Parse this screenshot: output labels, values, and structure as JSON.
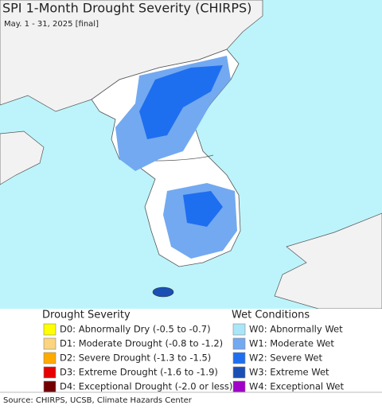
{
  "title": "SPI 1-Month Drought Severity (CHIRPS)",
  "subtitle": "May. 1 - 31, 2025 [final]",
  "legend": {
    "drought": {
      "title": "Drought Severity",
      "items": [
        {
          "label": "D0: Abnormally Dry (-0.5 to -0.7)",
          "color": "#ffff00"
        },
        {
          "label": "D1: Moderate Drought (-0.8 to -1.2)",
          "color": "#fcd37f"
        },
        {
          "label": "D2: Severe Drought (-1.3 to -1.5)",
          "color": "#ffaa00"
        },
        {
          "label": "D3: Extreme Drought (-1.6 to -1.9)",
          "color": "#e60000"
        },
        {
          "label": "D4: Exceptional Drought (-2.0 or less)",
          "color": "#730000"
        }
      ]
    },
    "wet": {
      "title": "Wet Conditions",
      "items": [
        {
          "label": "W0: Abnormally Wet",
          "color": "#aae6fa"
        },
        {
          "label": "W1: Moderate Wet",
          "color": "#73a9f0"
        },
        {
          "label": "W2: Severe Wet",
          "color": "#1e6ef0"
        },
        {
          "label": "W3: Extreme Wet",
          "color": "#1a4fb4"
        },
        {
          "label": "W4: Exceptional Wet",
          "color": "#a000c8"
        }
      ]
    }
  },
  "source": "Source: CHIRPS, UCSB, Climate Hazards Center"
}
